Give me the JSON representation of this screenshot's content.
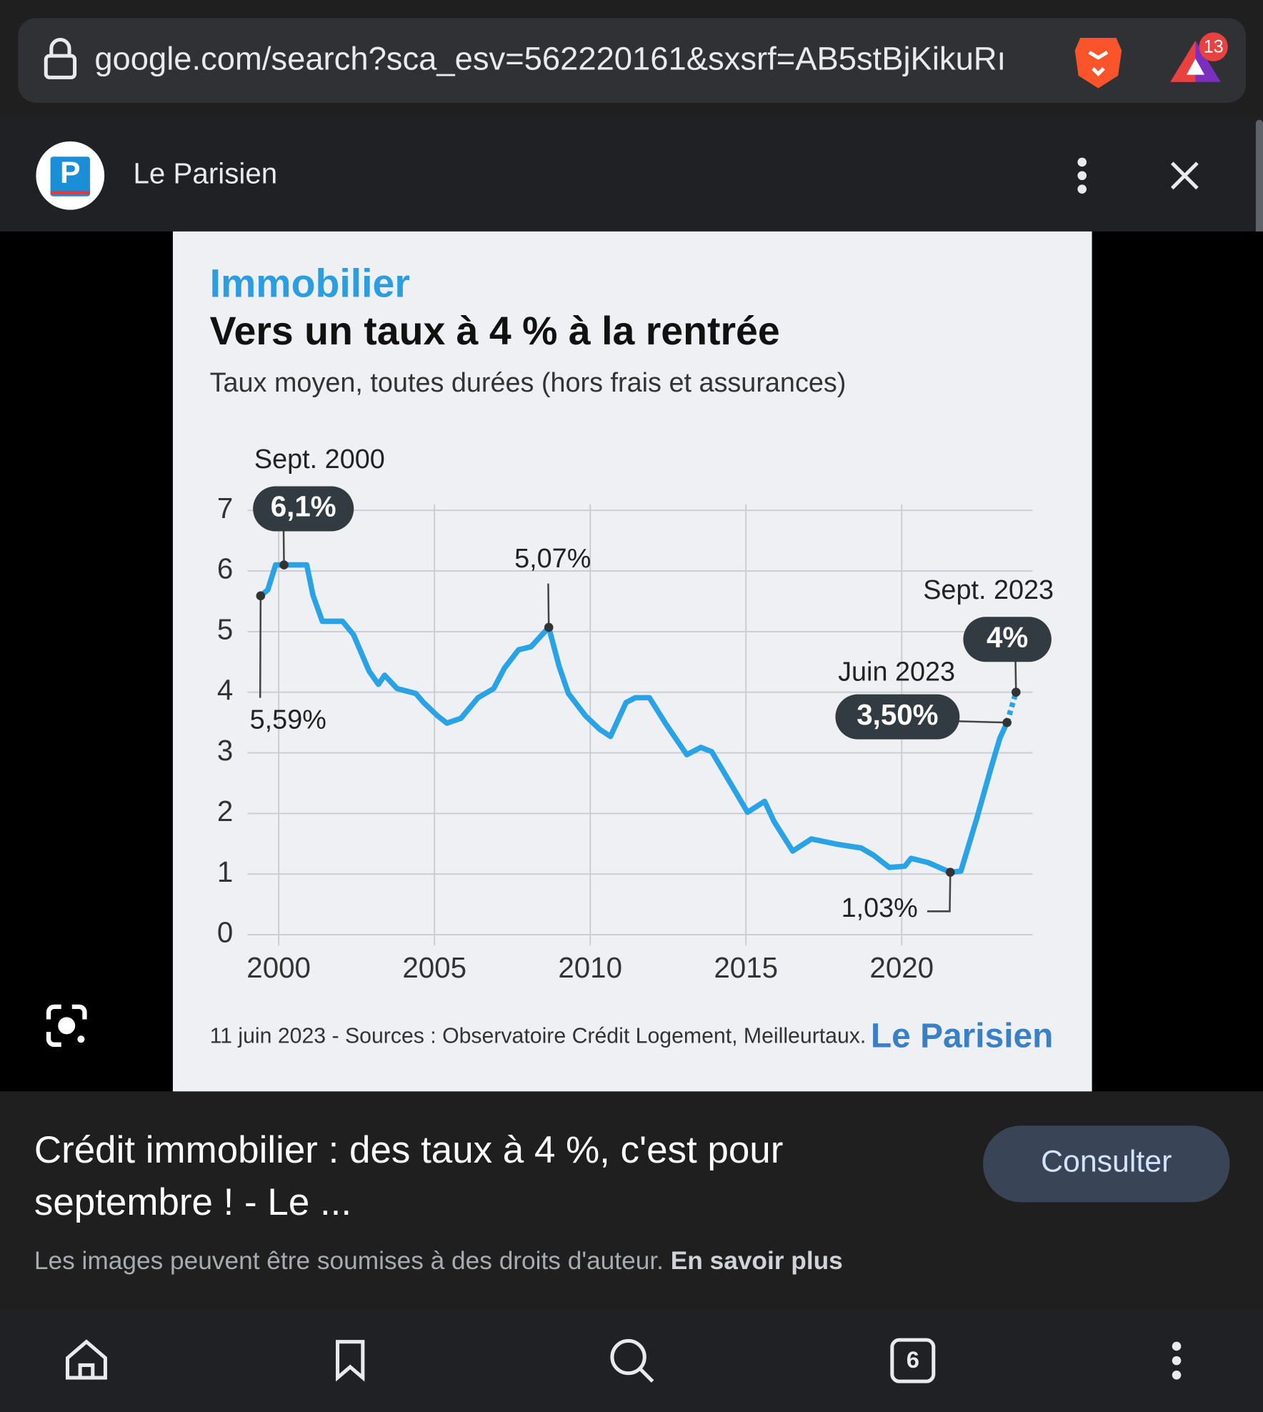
{
  "browser": {
    "url": "google.com/search?sca_esv=562220161&sxsrf=AB5stBjKikuRı",
    "notification_count": 13,
    "tab_count": 6
  },
  "source": {
    "name": "Le Parisien",
    "logo_letter": "P"
  },
  "chart_data": {
    "type": "line",
    "kicker": "Immobilier",
    "title": "Vers un taux à 4 % à la rentrée",
    "subtitle": "Taux moyen, toutes durées (hors frais et assurances)",
    "x": [
      1999.42,
      1999.65,
      1999.9,
      2000.17,
      2000.46,
      2000.9,
      2001.1,
      2001.4,
      2002.05,
      2002.4,
      2002.9,
      2003.2,
      2003.4,
      2003.8,
      2004.4,
      2004.65,
      2005.1,
      2005.4,
      2005.85,
      2006.4,
      2006.9,
      2007.25,
      2007.7,
      2008.1,
      2008.67,
      2009.0,
      2009.3,
      2009.85,
      2010.3,
      2010.65,
      2011.15,
      2011.45,
      2011.9,
      2012.45,
      2013.1,
      2013.55,
      2013.9,
      2014.5,
      2015.05,
      2015.6,
      2015.9,
      2016.5,
      2017.1,
      2017.95,
      2018.7,
      2019.1,
      2019.6,
      2020.1,
      2020.3,
      2020.85,
      2021.56,
      2021.9,
      2022.4,
      2022.85,
      2023.15,
      2023.38,
      2023.67
    ],
    "series": [
      {
        "color": "#29a3e6",
        "dashed": false,
        "values": [
          5.59,
          5.69,
          6.1,
          6.1,
          6.1,
          6.1,
          5.6,
          5.17,
          5.17,
          4.95,
          4.35,
          4.13,
          4.28,
          4.06,
          3.98,
          3.83,
          3.61,
          3.49,
          3.57,
          3.91,
          4.06,
          4.4,
          4.7,
          4.75,
          5.07,
          4.43,
          3.98,
          3.61,
          3.39,
          3.27,
          3.83,
          3.91,
          3.91,
          3.46,
          2.97,
          3.09,
          3.02,
          2.5,
          2.02,
          2.2,
          1.87,
          1.38,
          1.58,
          1.49,
          1.43,
          1.31,
          1.11,
          1.13,
          1.26,
          1.19,
          1.03,
          1.05,
          1.9,
          2.72,
          3.24,
          3.5,
          null
        ]
      },
      {
        "color": "#29a3e6",
        "dashed": true,
        "values": [
          null,
          null,
          null,
          null,
          null,
          null,
          null,
          null,
          null,
          null,
          null,
          null,
          null,
          null,
          null,
          null,
          null,
          null,
          null,
          null,
          null,
          null,
          null,
          null,
          null,
          null,
          null,
          null,
          null,
          null,
          null,
          null,
          null,
          null,
          null,
          null,
          null,
          null,
          null,
          null,
          null,
          null,
          null,
          null,
          null,
          null,
          null,
          null,
          null,
          null,
          null,
          null,
          null,
          null,
          null,
          3.5,
          4
        ]
      }
    ],
    "xlim": [
      1999,
      2024.2
    ],
    "xticks": [
      2000,
      2005,
      2010,
      2015,
      2020
    ],
    "ylim": [
      0,
      7.1
    ],
    "yticks": [
      0,
      1,
      2,
      3,
      4,
      5,
      6,
      7
    ],
    "grid": true,
    "annotations": [
      {
        "label": "5,59%",
        "x": 1999.42,
        "value": 5.59
      },
      {
        "date": "Sept. 2000",
        "label": "6,1%",
        "x": 2000.17,
        "value": 6.1
      },
      {
        "label": "5,07%",
        "x": 2008.67,
        "value": 5.07
      },
      {
        "label": "1,03%",
        "x": 2021.56,
        "value": 1.03
      },
      {
        "date": "Juin 2023",
        "label": "3,50%",
        "x": 2023.38,
        "value": 3.5
      },
      {
        "date": "Sept. 2023",
        "label": "4%",
        "x": 2023.67,
        "value": 4
      }
    ],
    "footnote": "11 juin 2023 - Sources : Observatoire Crédit Logement, Meilleurtaux.",
    "brand": "Le Parisien"
  },
  "caption": {
    "title": "Crédit immobilier : des taux à 4 %, c'est pour septembre ! - Le ...",
    "button": "Consulter",
    "notice": "Les images peuvent être soumises à des droits d'auteur.",
    "link": "En savoir plus"
  }
}
